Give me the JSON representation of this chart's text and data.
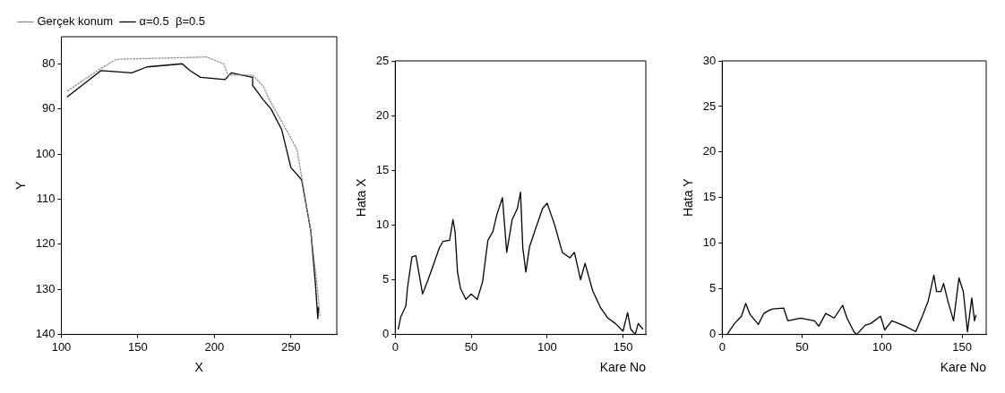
{
  "chart_data": [
    {
      "type": "line",
      "xlabel": "X",
      "ylabel": "Y",
      "xlim": [
        100,
        280
      ],
      "xticks": [
        100,
        150,
        200,
        250
      ],
      "ylim": [
        140,
        74
      ],
      "yticks": [
        80,
        90,
        100,
        110,
        120,
        130,
        140
      ],
      "grid": false,
      "legend": "top left",
      "marker": "none",
      "series": [
        {
          "name": "Gerçek konum",
          "color": "#8c8c8c",
          "line_style": "dotted",
          "x": [
            104,
            126,
            136,
            160,
            195,
            206,
            209,
            225,
            232,
            236,
            246,
            254,
            257,
            263,
            267,
            269
          ],
          "values": [
            86,
            81,
            79,
            78.8,
            78.5,
            80,
            82.5,
            82.5,
            85,
            88,
            94,
            99,
            105,
            117,
            128.7,
            135.8
          ]
        },
        {
          "name": "α=0.5  β=0.5",
          "color": "#000000",
          "line_style": "solid",
          "x": [
            104,
            126,
            146,
            156,
            179,
            184,
            191,
            207,
            211,
            225,
            225,
            232,
            237,
            244,
            250,
            257,
            263,
            266,
            267.6,
            268
          ],
          "values": [
            87.3,
            81.5,
            82,
            80.7,
            80,
            81.5,
            83,
            83.5,
            82,
            83,
            84.8,
            88,
            90,
            94.6,
            103,
            105.7,
            117,
            128.7,
            136.5,
            134
          ]
        }
      ]
    },
    {
      "type": "line",
      "xlabel": "Kare No",
      "ylabel": "Hata X",
      "xlim": [
        0,
        165
      ],
      "xticks": [
        0,
        50,
        100,
        150
      ],
      "ylim": [
        0,
        25
      ],
      "yticks": [
        0,
        5,
        10,
        15,
        20,
        25
      ],
      "grid": false,
      "marker": "none",
      "series": [
        {
          "color": "#000000",
          "line_style": "solid",
          "x": [
            2,
            3.6,
            7,
            8,
            11,
            13.6,
            16,
            18,
            21.6,
            25,
            29,
            31.4,
            35.8,
            38,
            39.4,
            41,
            43,
            46.5,
            50,
            54,
            57.5,
            61,
            64.3,
            67,
            70.6,
            73.4,
            77,
            80.4,
            82.5,
            84,
            86,
            88.4,
            92,
            97,
            100,
            105,
            110,
            115,
            118,
            122,
            125,
            130,
            135,
            140,
            145,
            150,
            153,
            155,
            158,
            160,
            163
          ],
          "values": [
            0.5,
            1.6,
            2.6,
            4.2,
            7.1,
            7.2,
            5.3,
            3.7,
            5,
            6.3,
            7.9,
            8.5,
            8.6,
            10.5,
            9.4,
            5.7,
            4.2,
            3.2,
            3.7,
            3.2,
            4.8,
            8.6,
            9.4,
            11,
            12.5,
            7.5,
            10.5,
            11.5,
            13,
            7.9,
            5.7,
            8,
            9.5,
            11.5,
            12,
            10,
            7.5,
            7,
            7.5,
            5,
            6.5,
            4,
            2.5,
            1.5,
            1,
            0.3,
            2,
            0.5,
            0,
            1,
            0.5
          ]
        }
      ]
    },
    {
      "type": "line",
      "xlabel": "Kare No",
      "ylabel": "Hata Y",
      "xlim": [
        0,
        165
      ],
      "xticks": [
        0,
        50,
        100,
        150
      ],
      "ylim": [
        0,
        30
      ],
      "yticks": [
        0,
        5,
        10,
        15,
        20,
        25,
        30
      ],
      "grid": false,
      "marker": "none",
      "series": [
        {
          "color": "#000000",
          "line_style": "solid",
          "x": [
            3.4,
            7.7,
            12,
            14.7,
            17.4,
            22.6,
            26,
            28.8,
            31.4,
            38.4,
            41,
            49,
            57.7,
            60.4,
            64.7,
            70,
            75.3,
            78,
            82.3,
            84,
            89.3,
            92.8,
            99,
            101.6,
            106,
            110.4,
            115.6,
            121,
            125.3,
            128.8,
            132.3,
            134,
            136.7,
            138.4,
            141,
            144.6,
            148,
            150.7,
            153.3,
            156,
            157.7,
            158.6
          ],
          "values": [
            0.1,
            1.2,
            2,
            3.4,
            2.2,
            1.1,
            2.3,
            2.6,
            2.8,
            2.9,
            1.5,
            1.8,
            1.5,
            0.9,
            2.3,
            1.8,
            3.2,
            1.8,
            0.3,
            0,
            1,
            1.2,
            2,
            0.5,
            1.5,
            1.2,
            0.8,
            0.3,
            2.1,
            3.7,
            6.5,
            4.7,
            4.7,
            5.6,
            3.7,
            1.5,
            6.2,
            4.7,
            0.3,
            4,
            1.5,
            2.1
          ]
        }
      ]
    }
  ]
}
